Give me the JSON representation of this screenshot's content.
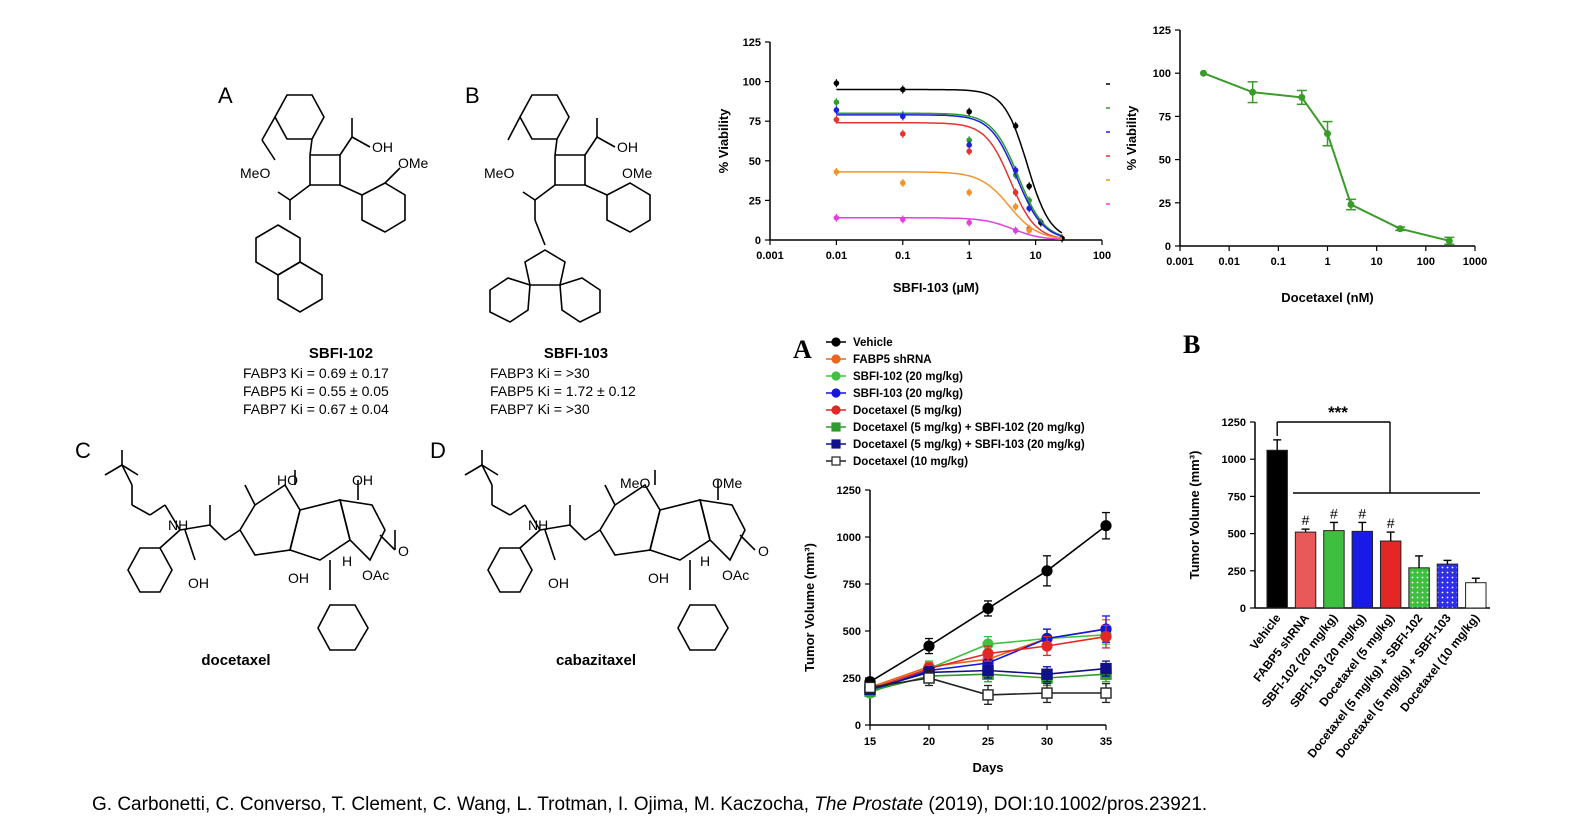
{
  "structures": [
    {
      "letter": "A",
      "name": "SBFI-102",
      "ki": [
        "FABP3 Ki = 0.69 ± 0.17",
        "FABP5 Ki = 0.55 ± 0.05",
        "FABP7 Ki = 0.67 ± 0.04"
      ],
      "atom_labels": [
        "OH",
        "MeO",
        "OMe"
      ]
    },
    {
      "letter": "B",
      "name": "SBFI-103",
      "ki": [
        "FABP3 Ki = >30",
        "FABP5 Ki = 1.72 ± 0.12",
        "FABP7 Ki = >30"
      ],
      "atom_labels": [
        "OH",
        "MeO",
        "OMe"
      ]
    },
    {
      "letter": "C",
      "name": "docetaxel",
      "atom_labels": [
        "HO",
        "OH",
        "NH",
        "OH",
        "OH",
        "H",
        "OAc",
        "O"
      ]
    },
    {
      "letter": "D",
      "name": "cabazitaxel",
      "atom_labels": [
        "MeO",
        "OMe",
        "NH",
        "OH",
        "OH",
        "H",
        "OAc",
        "O"
      ]
    }
  ],
  "chart_data": [
    {
      "id": "viability-sbfi103",
      "type": "scatter",
      "xlabel": "SBFI-103 (µM)",
      "ylabel": "% Viability",
      "xscale": "log",
      "xlim": [
        0.001,
        100
      ],
      "ylim": [
        0,
        125
      ],
      "xticks": [
        "0.001",
        "0.01",
        "0.1",
        "1",
        "10",
        "100"
      ],
      "yticks": [
        "0",
        "25",
        "50",
        "75",
        "100",
        "125"
      ],
      "legend": "right",
      "series": [
        {
          "color": "#000000",
          "x": [
            0.01,
            0.1,
            1,
            5,
            8,
            12,
            25
          ],
          "y": [
            99,
            95,
            81,
            72,
            34,
            11,
            1
          ],
          "fit": {
            "top": 95,
            "ic50": 7.5,
            "hill": 2.5
          }
        },
        {
          "color": "#2ca02c",
          "x": [
            0.01,
            0.1,
            1,
            5,
            8
          ],
          "y": [
            87,
            79,
            63,
            41,
            25
          ],
          "fit": {
            "top": 80,
            "ic50": 5.5,
            "hill": 2.2
          }
        },
        {
          "color": "#1f1fe0",
          "x": [
            0.01,
            0.1,
            1,
            5,
            8
          ],
          "y": [
            82,
            78,
            60,
            44,
            20
          ],
          "fit": {
            "top": 79,
            "ic50": 5.2,
            "hill": 2.2
          }
        },
        {
          "color": "#e3342f",
          "x": [
            0.01,
            0.1,
            1,
            5,
            8
          ],
          "y": [
            76,
            67,
            56,
            30,
            7
          ],
          "fit": {
            "top": 74,
            "ic50": 4.2,
            "hill": 2.3
          }
        },
        {
          "color": "#f0932b",
          "x": [
            0.01,
            0.1,
            1,
            5,
            8
          ],
          "y": [
            43,
            36,
            30,
            21,
            6
          ],
          "fit": {
            "top": 43,
            "ic50": 4.0,
            "hill": 2.0
          }
        },
        {
          "color": "#e040e0",
          "x": [
            0.01,
            0.1,
            1,
            5
          ],
          "y": [
            14,
            13,
            11,
            6
          ],
          "fit": {
            "top": 14,
            "ic50": 4.5,
            "hill": 2.0
          }
        }
      ]
    },
    {
      "id": "viability-docetaxel",
      "type": "line",
      "xlabel": "Docetaxel (nM)",
      "ylabel": "% Viability",
      "xscale": "log",
      "xlim": [
        0.001,
        1000
      ],
      "ylim": [
        0,
        125
      ],
      "xticks": [
        "0.001",
        "0.01",
        "0.1",
        "1",
        "10",
        "100",
        "1000"
      ],
      "yticks": [
        "0",
        "25",
        "50",
        "75",
        "100",
        "125"
      ],
      "series": [
        {
          "color": "#3a9a2a",
          "x": [
            0.003,
            0.03,
            0.3,
            1,
            3,
            30,
            300
          ],
          "y": [
            100,
            89,
            86,
            65,
            24,
            10,
            3
          ],
          "err": [
            0,
            6,
            4,
            7,
            3,
            1,
            2
          ]
        }
      ]
    },
    {
      "id": "tumor-volume-time",
      "letter": "A",
      "type": "line",
      "xlabel": "Days",
      "ylabel": "Tumor Volume (mm³)",
      "xlim": [
        15,
        35
      ],
      "ylim": [
        0,
        1250
      ],
      "xticks": [
        "15",
        "20",
        "25",
        "30",
        "35"
      ],
      "yticks": [
        "0",
        "250",
        "500",
        "750",
        "1000",
        "1250"
      ],
      "x": [
        15,
        20,
        25,
        30,
        35
      ],
      "legend": "top",
      "series": [
        {
          "name": "Vehicle",
          "color": "#000000",
          "marker": "circle",
          "fill": true,
          "values": [
            230,
            420,
            620,
            820,
            1060
          ],
          "err": [
            20,
            40,
            40,
            80,
            70
          ]
        },
        {
          "name": "FABP5 shRNA",
          "color": "#e8661e",
          "marker": "circle",
          "fill": true,
          "values": [
            200,
            310,
            350,
            460,
            510
          ],
          "err": [
            20,
            30,
            40,
            50,
            50
          ]
        },
        {
          "name": "SBFI-102 (20 mg/kg)",
          "color": "#3fc23f",
          "marker": "circle",
          "fill": true,
          "values": [
            170,
            300,
            430,
            460,
            480
          ],
          "err": [
            20,
            40,
            40,
            50,
            50
          ]
        },
        {
          "name": "SBFI-103 (20 mg/kg)",
          "color": "#1515e0",
          "marker": "circle",
          "fill": true,
          "values": [
            180,
            290,
            330,
            460,
            510
          ],
          "err": [
            20,
            30,
            40,
            50,
            70
          ]
        },
        {
          "name": "Docetaxel (5 mg/kg)",
          "color": "#e32626",
          "marker": "circle",
          "fill": true,
          "values": [
            190,
            300,
            380,
            420,
            470
          ],
          "err": [
            20,
            30,
            40,
            50,
            60
          ]
        },
        {
          "name": "Docetaxel (5 mg/kg) + SBFI-102 (20 mg/kg)",
          "color": "#2f9a2f",
          "marker": "square",
          "fill": true,
          "values": [
            180,
            260,
            270,
            250,
            270
          ],
          "err": [
            20,
            30,
            40,
            40,
            40
          ]
        },
        {
          "name": "Docetaxel (5 mg/kg) + SBFI-103 (20 mg/kg)",
          "color": "#10108a",
          "marker": "square",
          "fill": true,
          "values": [
            190,
            280,
            290,
            270,
            300
          ],
          "err": [
            20,
            30,
            40,
            40,
            40
          ]
        },
        {
          "name": "Docetaxel (10 mg/kg)",
          "color": "#222222",
          "marker": "square",
          "fill": false,
          "values": [
            200,
            250,
            160,
            170,
            170
          ],
          "err": [
            20,
            40,
            50,
            50,
            50
          ]
        }
      ]
    },
    {
      "id": "tumor-volume-final",
      "letter": "B",
      "type": "bar",
      "ylabel": "Tumor Volume (mm³)",
      "ylim": [
        0,
        1250
      ],
      "yticks": [
        "0",
        "250",
        "500",
        "750",
        "1000",
        "1250"
      ],
      "categories": [
        "Vehicle",
        "FABP5 shRNA",
        "SBFI-102 (20 mg/kg)",
        "SBFI-103 (20 mg/kg)",
        "Docetaxel (5 mg/kg)",
        "Docetaxel (5 mg/kg) + SBFI-102",
        "Docetaxel (5 mg/kg) + SBFI-103",
        "Docetaxel (10 mg/kg)"
      ],
      "values": [
        1060,
        510,
        520,
        515,
        450,
        270,
        295,
        170
      ],
      "err": [
        70,
        20,
        55,
        60,
        60,
        80,
        25,
        30
      ],
      "colors": [
        "#000000",
        "#e85a5a",
        "#3fbf3f",
        "#1a1ae6",
        "#e32626",
        "#55cc55",
        "#2f2fe8",
        "#ffffff"
      ],
      "patterns": [
        "solid",
        "solid",
        "solid",
        "solid",
        "solid",
        "dots",
        "dots",
        "solid"
      ],
      "marks": [
        "",
        "#",
        "#",
        "#",
        "#",
        "",
        "",
        ""
      ],
      "significance": "***"
    }
  ],
  "citation": {
    "authors": "G. Carbonetti, C. Converso, T. Clement, C. Wang, L. Trotman, I. Ojima, M. Kaczocha, ",
    "journal": "The Prostate",
    "rest": " (2019), DOI:10.1002/pros.23921."
  }
}
